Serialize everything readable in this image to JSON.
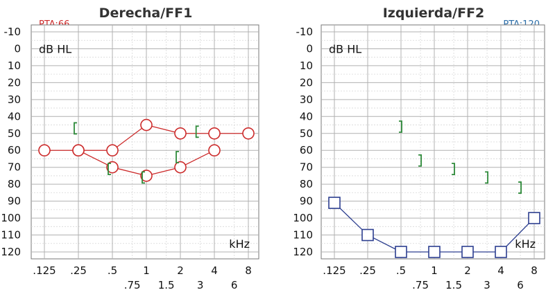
{
  "colors": {
    "right_ear": "#cc2a2a",
    "left_ear": "#2c3e8f",
    "bone": "#2e8b3a",
    "pta_right": "#cc2a2a",
    "pta_left": "#2c6ea8",
    "grid_major": "#b0b0b0",
    "grid_minor": "#d8d8d8"
  },
  "chart_data": [
    {
      "type": "scatter",
      "title": "Derecha/FF1",
      "pta_label": "PTA:66",
      "ylabel": "dB HL",
      "xlabel": "kHz",
      "y_reversed": true,
      "ylim": [
        -10,
        120
      ],
      "y_ticks": [
        "-10",
        "0",
        "10",
        "20",
        "30",
        "40",
        "50",
        "60",
        "70",
        "80",
        "90",
        "100",
        "110",
        "120"
      ],
      "x_main_ticks": [
        ".125",
        ".25",
        ".5",
        "1",
        "2",
        "4",
        "8"
      ],
      "x_half_ticks": [
        ".75",
        "1.5",
        "3",
        "6"
      ],
      "grid": true,
      "series": [
        {
          "symbol": "circle",
          "connected": true,
          "points": [
            {
              "f": 0.125,
              "db": 60
            },
            {
              "f": 0.25,
              "db": 60
            },
            {
              "f": 0.5,
              "db": 60
            },
            {
              "f": 1,
              "db": 45
            },
            {
              "f": 2,
              "db": 50
            },
            {
              "f": 4,
              "db": 50
            },
            {
              "f": 8,
              "db": 50
            }
          ]
        },
        {
          "symbol": "circle",
          "connected": true,
          "points": [
            {
              "f": 0.25,
              "db": 60
            },
            {
              "f": 0.5,
              "db": 70
            },
            {
              "f": 1,
              "db": 75
            },
            {
              "f": 2,
              "db": 70
            },
            {
              "f": 4,
              "db": 60
            }
          ]
        },
        {
          "symbol": "bracket-left",
          "connected": false,
          "points": [
            {
              "f": 0.25,
              "db": 47
            },
            {
              "f": 0.5,
              "db": 71
            },
            {
              "f": 1,
              "db": 76
            },
            {
              "f": 2,
              "db": 64
            },
            {
              "f": 3,
              "db": 49
            }
          ]
        }
      ]
    },
    {
      "type": "scatter",
      "title": "Izquierda/FF2",
      "pta_label": "PTA:120",
      "ylabel": "dB HL",
      "xlabel": "kHz",
      "y_reversed": true,
      "ylim": [
        -10,
        120
      ],
      "y_ticks": [
        "-10",
        "0",
        "10",
        "20",
        "30",
        "40",
        "50",
        "60",
        "70",
        "80",
        "90",
        "100",
        "110",
        "120"
      ],
      "x_main_ticks": [
        ".125",
        ".25",
        ".5",
        "1",
        "2",
        "4",
        "8"
      ],
      "x_half_ticks": [
        ".75",
        "1.5",
        "3",
        "6"
      ],
      "grid": true,
      "series": [
        {
          "symbol": "square",
          "connected": true,
          "points": [
            {
              "f": 0.125,
              "db": 91
            },
            {
              "f": 0.25,
              "db": 110
            },
            {
              "f": 0.5,
              "db": 120
            },
            {
              "f": 1,
              "db": 120
            },
            {
              "f": 2,
              "db": 120
            },
            {
              "f": 4,
              "db": 120
            },
            {
              "f": 8,
              "db": 100
            }
          ]
        },
        {
          "symbol": "bracket-right",
          "connected": false,
          "points": [
            {
              "f": 0.5,
              "db": 46
            },
            {
              "f": 0.75,
              "db": 66
            },
            {
              "f": 1.5,
              "db": 71
            },
            {
              "f": 3,
              "db": 76
            },
            {
              "f": 6,
              "db": 82
            }
          ]
        }
      ]
    }
  ]
}
